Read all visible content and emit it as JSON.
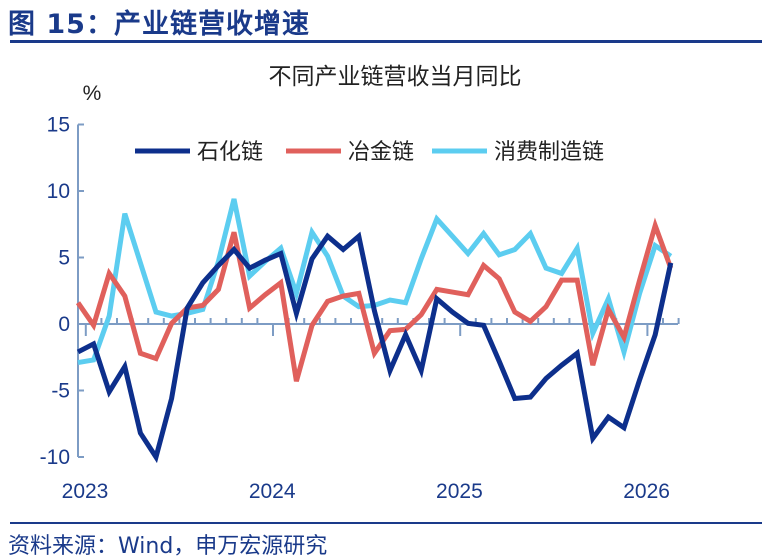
{
  "figure_title": "图 15：产业链营收增速",
  "source": "资料来源：Wind，申万宏源研究",
  "colors": {
    "petrochem": "#0d2f8c",
    "metallurgy": "#e0605c",
    "consumer": "#5ccdf0",
    "axis": "#7d9cc4"
  },
  "chart_data": {
    "type": "line",
    "title": "不同产业链营收当月同比",
    "ylabel": "%",
    "xlabel": "",
    "ylim": [
      -10,
      15
    ],
    "yticks": [
      "15",
      "10",
      "5",
      "0",
      "-5",
      "-10"
    ],
    "ytick_values": [
      15,
      10,
      5,
      0,
      -5,
      -10
    ],
    "xtick_labels": [
      "2023",
      "2024",
      "2025",
      "2026"
    ],
    "xtick_index": [
      0,
      12,
      24,
      36
    ],
    "x_note": "monthly, index 0 = Jan 2023",
    "legend_position": "top",
    "series": [
      {
        "name": "石化链",
        "values": [
          -2.1,
          -1.5,
          -5.1,
          -3.2,
          -8.2,
          -10.0,
          -5.6,
          1.2,
          3.1,
          4.4,
          5.6,
          4.2,
          4.8,
          5.3,
          0.8,
          4.9,
          6.6,
          5.6,
          6.6,
          1.0,
          -3.5,
          -0.8,
          -3.5,
          1.9,
          0.9,
          0.05,
          -0.1,
          -2.8,
          -5.6,
          -5.5,
          -4.1,
          -3.1,
          -2.2,
          -8.6,
          -7.0,
          -7.8,
          -4.2,
          -0.8,
          4.6
        ]
      },
      {
        "name": "冶金链",
        "values": [
          1.6,
          -0.1,
          3.8,
          2.1,
          -2.2,
          -2.6,
          0.05,
          1.2,
          1.4,
          2.6,
          6.9,
          1.2,
          2.2,
          3.1,
          -4.3,
          -0.1,
          1.7,
          2.1,
          2.3,
          -2.2,
          -0.5,
          -0.4,
          0.7,
          2.6,
          2.4,
          2.2,
          4.4,
          3.4,
          0.9,
          0.2,
          1.3,
          3.3,
          3.3,
          -3.1,
          1.1,
          -1.0,
          3.3,
          7.4,
          4.2
        ]
      },
      {
        "name": "消费制造链",
        "values": [
          -2.9,
          -2.7,
          0.6,
          8.3,
          4.6,
          0.9,
          0.6,
          0.8,
          1.1,
          4.7,
          9.4,
          3.6,
          4.7,
          5.7,
          2.3,
          6.9,
          5.1,
          2.1,
          1.3,
          1.4,
          1.8,
          1.6,
          4.9,
          7.9,
          6.6,
          5.3,
          6.8,
          5.2,
          5.6,
          6.8,
          4.2,
          3.8,
          5.7,
          -0.7,
          1.9,
          -2.1,
          2.3,
          5.9,
          5.1
        ]
      }
    ]
  }
}
